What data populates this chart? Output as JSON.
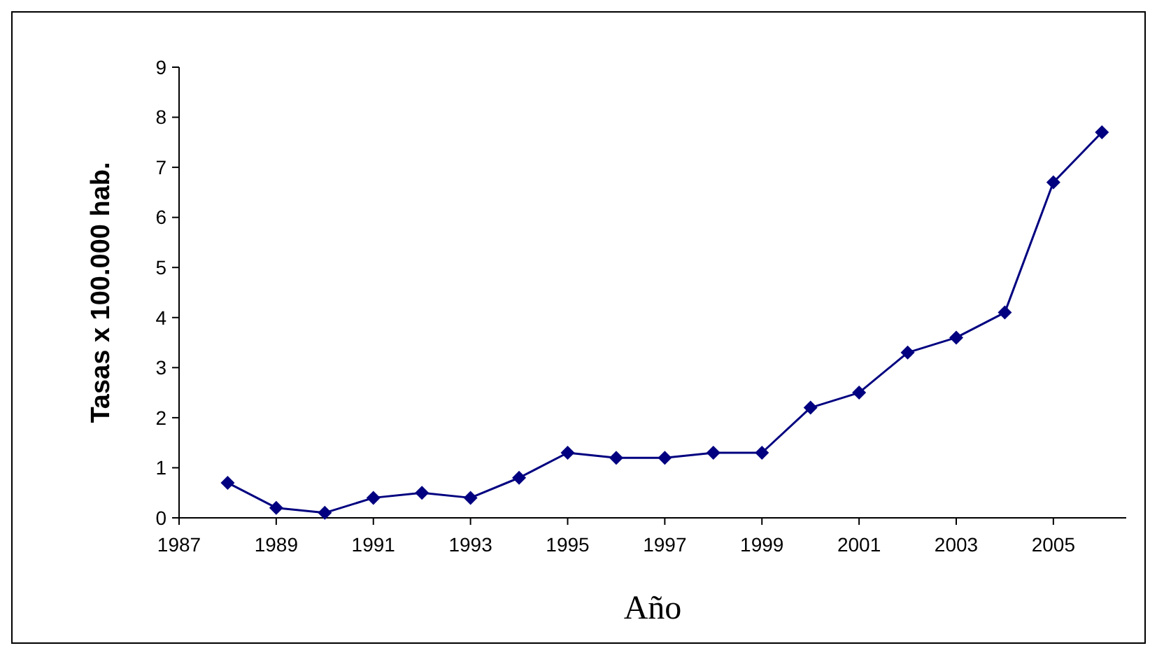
{
  "chart_data": {
    "type": "line",
    "xlabel": "Año",
    "ylabel": "Tasas x 100.000 hab.",
    "x": [
      1988,
      1989,
      1990,
      1991,
      1992,
      1993,
      1994,
      1995,
      1996,
      1997,
      1998,
      1999,
      2000,
      2001,
      2002,
      2003,
      2004,
      2005,
      2006
    ],
    "series": [
      {
        "color": "#000080",
        "values": [
          0.7,
          0.2,
          0.1,
          0.4,
          0.5,
          0.4,
          0.8,
          1.3,
          1.2,
          1.2,
          1.3,
          1.3,
          2.2,
          2.5,
          3.3,
          3.6,
          4.1,
          6.7,
          7.7
        ]
      }
    ],
    "xlim": [
      1987,
      2006.5
    ],
    "xticks": [
      1987,
      1989,
      1991,
      1993,
      1995,
      1997,
      1999,
      2001,
      2003,
      2005
    ],
    "ylim": [
      0,
      9
    ],
    "yticks": [
      0,
      1,
      2,
      3,
      4,
      5,
      6,
      7,
      8,
      9
    ],
    "marker": "diamond",
    "line_style": "solid"
  }
}
